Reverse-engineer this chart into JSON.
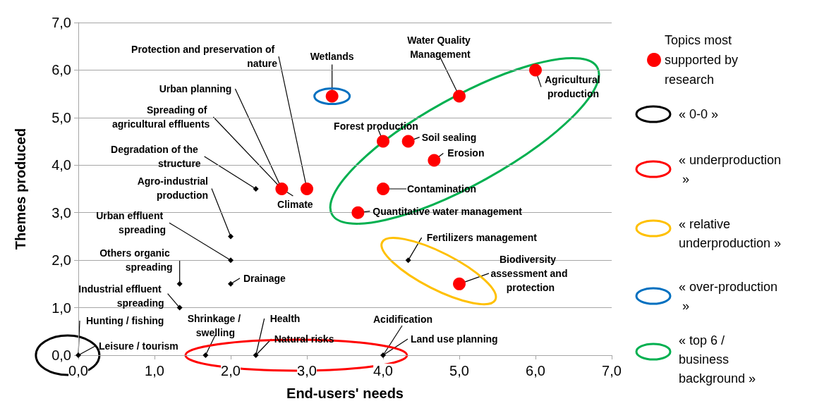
{
  "chart_data": {
    "type": "scatter",
    "xlabel": "End-users' needs",
    "ylabel": "Themes produced",
    "xlim": [
      0,
      7
    ],
    "ylim": [
      0,
      7
    ],
    "xticks": [
      {
        "value": 0,
        "label": "0,0"
      },
      {
        "value": 1,
        "label": "1,0"
      },
      {
        "value": 2,
        "label": "2,0"
      },
      {
        "value": 3,
        "label": "3,0"
      },
      {
        "value": 4,
        "label": "4,0"
      },
      {
        "value": 5,
        "label": "5,0"
      },
      {
        "value": 6,
        "label": "6,0"
      },
      {
        "value": 7,
        "label": "7,0"
      }
    ],
    "yticks": [
      {
        "value": 0,
        "label": "0,0"
      },
      {
        "value": 1,
        "label": "1,0"
      },
      {
        "value": 2,
        "label": "2,0"
      },
      {
        "value": 3,
        "label": "3,0"
      },
      {
        "value": 4,
        "label": "4,0"
      },
      {
        "value": 5,
        "label": "5,0"
      },
      {
        "value": 6,
        "label": "6,0"
      },
      {
        "value": 7,
        "label": "7,0"
      }
    ],
    "grid": "y",
    "legend": "right",
    "series": [
      {
        "name": "Topics most supported by research",
        "color": "#ff0000",
        "marker": "circle",
        "x": [
          3.33,
          5.0,
          6.0,
          4.0,
          4.33,
          4.67,
          4.0,
          3.67,
          2.67,
          3.0,
          5.0
        ],
        "values": [
          5.45,
          5.45,
          6.0,
          4.5,
          4.5,
          4.1,
          3.5,
          3.0,
          3.5,
          3.5,
          1.5
        ]
      },
      {
        "color": "#000000",
        "marker": "diamond",
        "x": [
          2.33,
          2.0,
          2.0,
          2.0,
          1.33,
          1.33,
          0,
          1.67,
          2.33,
          4.0,
          4.33
        ],
        "values": [
          3.5,
          2.5,
          2.0,
          1.5,
          1.5,
          1.0,
          0,
          0,
          0,
          0,
          2.0
        ]
      }
    ],
    "annotations": [
      {
        "text": "Protection and preservation of nature",
        "x": 3.0,
        "y": 3.5
      },
      {
        "text": "Wetlands",
        "x": 3.33,
        "y": 5.45
      },
      {
        "text": "Urban planning",
        "x": 2.67,
        "y": 3.5
      },
      {
        "text": "Spreading of agricultural effluents",
        "x": 2.67,
        "y": 3.5
      },
      {
        "text": "Degradation of the structure",
        "x": 2.33,
        "y": 3.5
      },
      {
        "text": "Agro-industrial production",
        "x": 2.0,
        "y": 2.5
      },
      {
        "text": "Climate",
        "x": 2.67,
        "y": 3.5
      },
      {
        "text": "Urban effluent spreading",
        "x": 2.0,
        "y": 2.0
      },
      {
        "text": "Others organic spreading",
        "x": 1.33,
        "y": 1.5
      },
      {
        "text": "Industrial effluent spreading",
        "x": 1.33,
        "y": 1.0
      },
      {
        "text": "Drainage",
        "x": 2.0,
        "y": 1.5
      },
      {
        "text": "Hunting / fishing",
        "x": 0,
        "y": 0
      },
      {
        "text": "Leisure / tourism",
        "x": 0,
        "y": 0
      },
      {
        "text": "Shrinkage / swelling",
        "x": 1.67,
        "y": 0
      },
      {
        "text": "Health",
        "x": 2.33,
        "y": 0
      },
      {
        "text": "Natural risks",
        "x": 2.33,
        "y": 0
      },
      {
        "text": "Acidification",
        "x": 4.0,
        "y": 0
      },
      {
        "text": "Land use planning",
        "x": 4.0,
        "y": 0
      },
      {
        "text": "Fertilizers management",
        "x": 4.33,
        "y": 2.0
      },
      {
        "text": "Biodiversity assessment and protection",
        "x": 5.0,
        "y": 1.5
      },
      {
        "text": "Quantitative water management",
        "x": 3.67,
        "y": 3.0
      },
      {
        "text": "Contamination",
        "x": 4.0,
        "y": 3.5
      },
      {
        "text": "Erosion",
        "x": 4.67,
        "y": 4.1
      },
      {
        "text": "Soil sealing",
        "x": 4.33,
        "y": 4.5
      },
      {
        "text": "Forest production",
        "x": 4.0,
        "y": 4.5
      },
      {
        "text": "Water Quality Management",
        "x": 5.0,
        "y": 5.45
      },
      {
        "text": "Agricultural production",
        "x": 6.0,
        "y": 6.0
      },
      "« 0-0 »",
      "« underproduction »",
      "« relative underproduction »",
      "« over-production »",
      "« top 6 / business background »"
    ]
  }
}
